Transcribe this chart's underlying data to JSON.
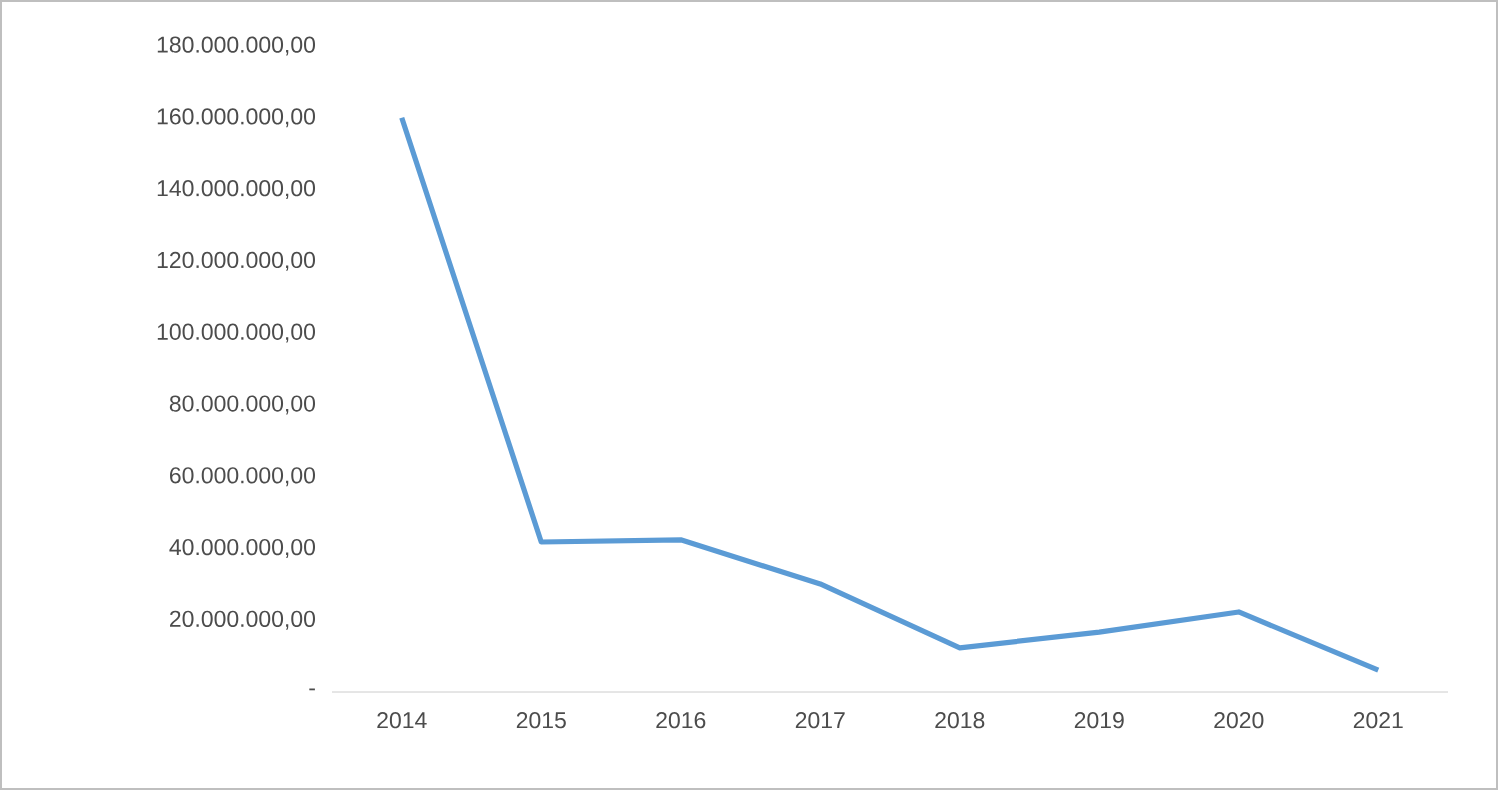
{
  "chart_data": {
    "type": "line",
    "categories": [
      "2014",
      "2015",
      "2016",
      "2017",
      "2018",
      "2019",
      "2020",
      "2021"
    ],
    "values": [
      160000000,
      41800000,
      42400000,
      30100000,
      12300000,
      16700000,
      22300000,
      6100000
    ],
    "color": "#5b9bd5",
    "ylim": [
      0,
      180000000
    ],
    "yticks": [
      {
        "value": 0,
        "label": "-"
      },
      {
        "value": 20000000,
        "label": "20.000.000,00"
      },
      {
        "value": 40000000,
        "label": "40.000.000,00"
      },
      {
        "value": 60000000,
        "label": "60.000.000,00"
      },
      {
        "value": 80000000,
        "label": "80.000.000,00"
      },
      {
        "value": 100000000,
        "label": "100.000.000,00"
      },
      {
        "value": 120000000,
        "label": "120.000.000,00"
      },
      {
        "value": 140000000,
        "label": "140.000.000,00"
      },
      {
        "value": 160000000,
        "label": "160.000.000,00"
      },
      {
        "value": 180000000,
        "label": "180.000.000,00"
      }
    ],
    "grid": false,
    "marker": "none"
  }
}
